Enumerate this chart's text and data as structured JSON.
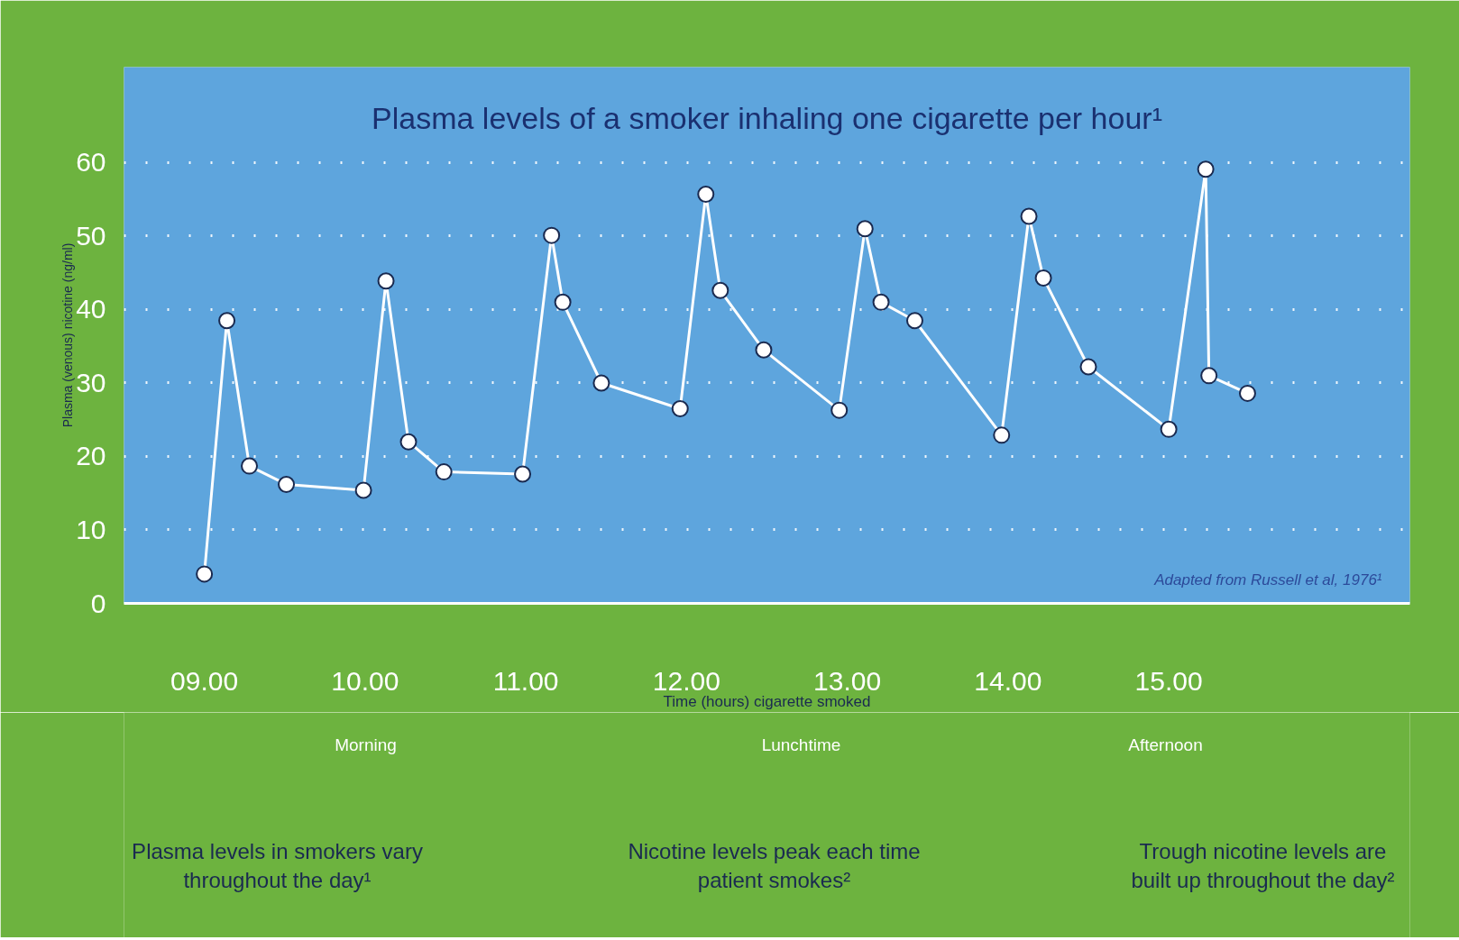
{
  "chart_data": {
    "type": "line",
    "title": "Plasma levels of a smoker inhaling one cigarette per hour¹",
    "xlabel": "Time (hours) cigarette smoked",
    "ylabel": "Plasma (venous) nicotine (ng/ml)",
    "x": [
      9.0,
      9.14,
      9.28,
      9.51,
      9.99,
      10.13,
      10.27,
      10.49,
      10.98,
      11.16,
      11.23,
      11.47,
      11.96,
      12.12,
      12.21,
      12.48,
      12.95,
      13.11,
      13.21,
      13.42,
      13.96,
      14.13,
      14.22,
      14.5,
      15.0,
      15.23,
      15.25,
      15.49
    ],
    "series": [
      {
        "color": "#ffffff",
        "values": [
          4,
          38.5,
          18.7,
          16.2,
          15.4,
          43.9,
          22,
          17.9,
          17.6,
          50.1,
          41,
          30,
          26.5,
          55.7,
          42.6,
          34.5,
          26.3,
          51,
          41,
          38.5,
          22.9,
          52.7,
          44.3,
          32.2,
          23.7,
          59.1,
          31,
          28.6
        ]
      }
    ],
    "xlim": [
      8.5,
      16.5
    ],
    "xticks": [
      {
        "value": 9,
        "label": "09.00"
      },
      {
        "value": 10,
        "label": "10.00"
      },
      {
        "value": 11,
        "label": "11.00"
      },
      {
        "value": 12,
        "label": "12.00"
      },
      {
        "value": 13,
        "label": "13.00"
      },
      {
        "value": 14,
        "label": "14.00"
      },
      {
        "value": 15,
        "label": "15.00"
      }
    ],
    "ylim": [
      0,
      73
    ],
    "yticks": [
      0,
      10,
      20,
      30,
      40,
      50,
      60
    ],
    "grid": "y",
    "marker": "circle",
    "line_style": "solid",
    "annotations": [
      "Adapted from Russell et al, 1976¹",
      "Morning",
      "Lunchtime",
      "Afternoon",
      "Plasma levels in smokers vary throughout the day¹",
      "Nicotine levels peak each time patient smokes²",
      "Trough nicotine levels are built up throughout the day²"
    ]
  }
}
